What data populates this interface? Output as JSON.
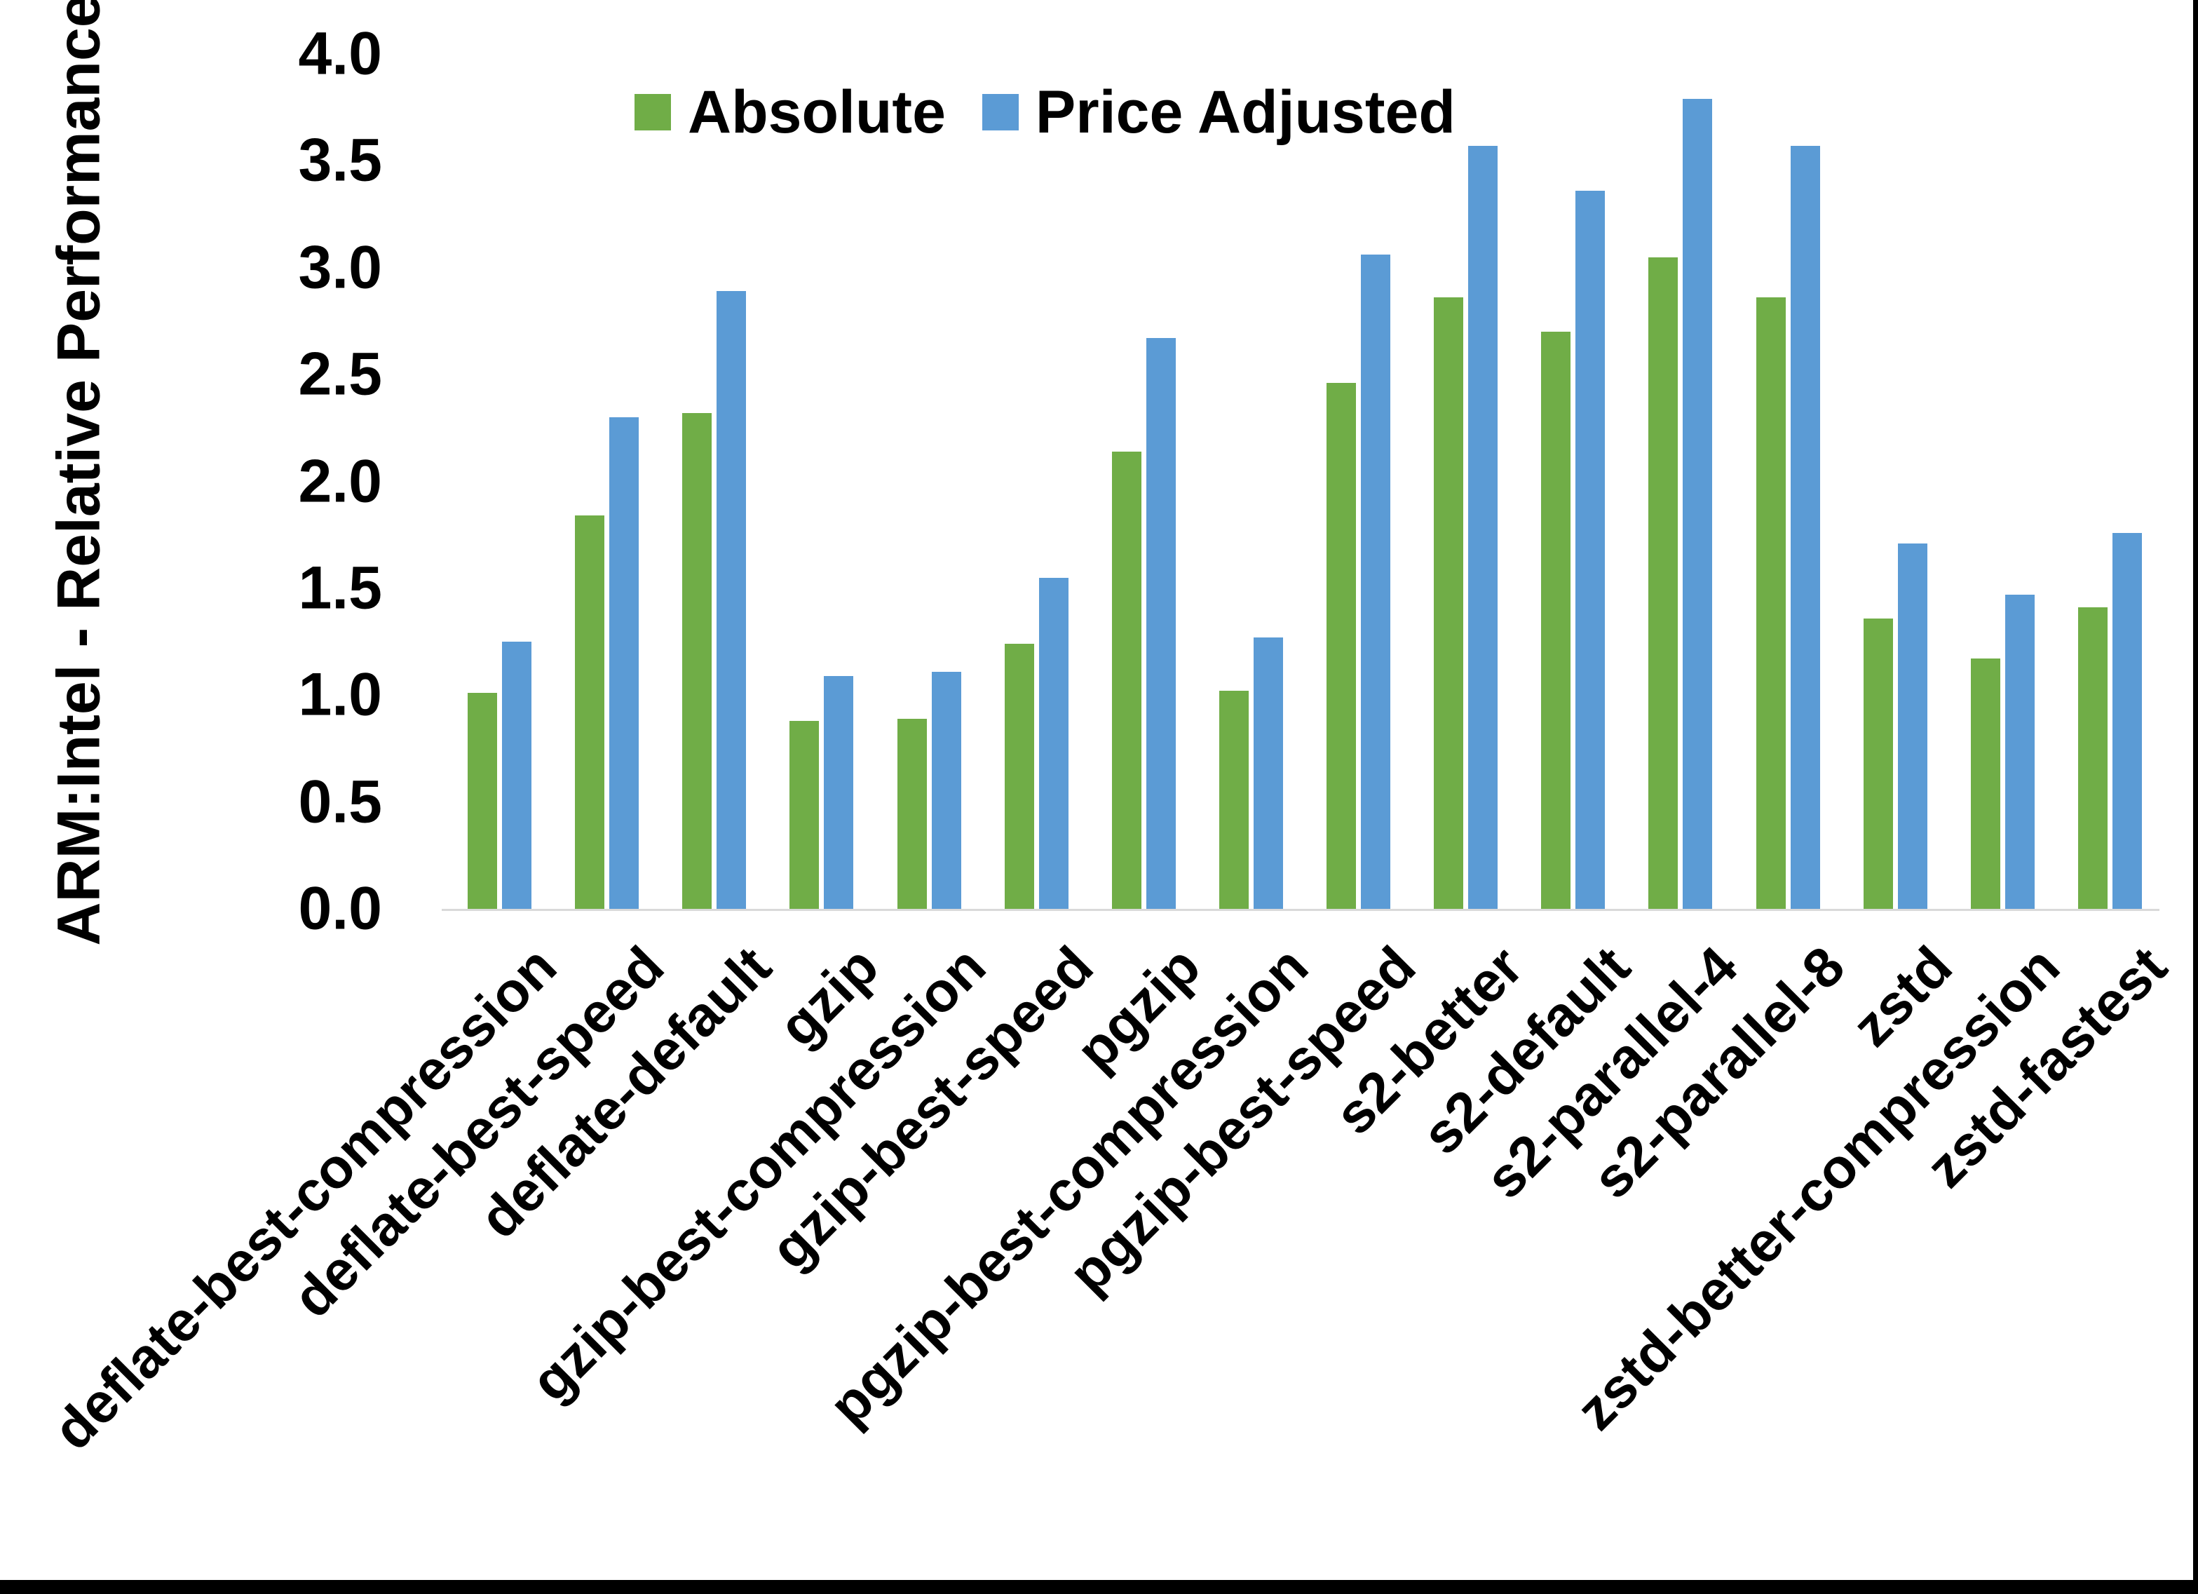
{
  "chart_data": {
    "type": "bar",
    "title": "",
    "xlabel": "",
    "ylabel": "ARM:Intel - Relative Performance",
    "ylim": [
      0,
      4
    ],
    "ytick_step": 0.5,
    "ytick_labels": [
      "4.0",
      "3.5",
      "3.0",
      "2.5",
      "2.0",
      "1.5",
      "1.0",
      "0.5",
      "0.0"
    ],
    "grid": false,
    "legend_position": "top-center",
    "axis_line_color": "#d9d9d9",
    "background_color": "#ffffff",
    "text_color": "#000000",
    "categories": [
      "deflate-best-compression",
      "deflate-best-speed",
      "deflate-default",
      "gzip",
      "gzip-best-compression",
      "gzip-best-speed",
      "pgzip",
      "pgzip-best-compression",
      "pgzip-best-speed",
      "s2-better",
      "s2-default",
      "s2-parallel-4",
      "s2-parallel-8",
      "zstd",
      "zstd-better-compression",
      "zstd-fastest"
    ],
    "series": [
      {
        "name": "Absolute",
        "color": "#70AD47",
        "values": [
          1.01,
          1.84,
          2.32,
          0.88,
          0.89,
          1.24,
          2.14,
          1.02,
          2.46,
          2.86,
          2.7,
          3.05,
          2.86,
          1.36,
          1.17,
          1.41
        ]
      },
      {
        "name": "Price Adjusted",
        "color": "#5B9BD5",
        "values": [
          1.25,
          2.3,
          2.89,
          1.09,
          1.11,
          1.55,
          2.67,
          1.27,
          3.06,
          3.57,
          3.36,
          3.79,
          3.57,
          1.71,
          1.47,
          1.76
        ]
      }
    ]
  }
}
